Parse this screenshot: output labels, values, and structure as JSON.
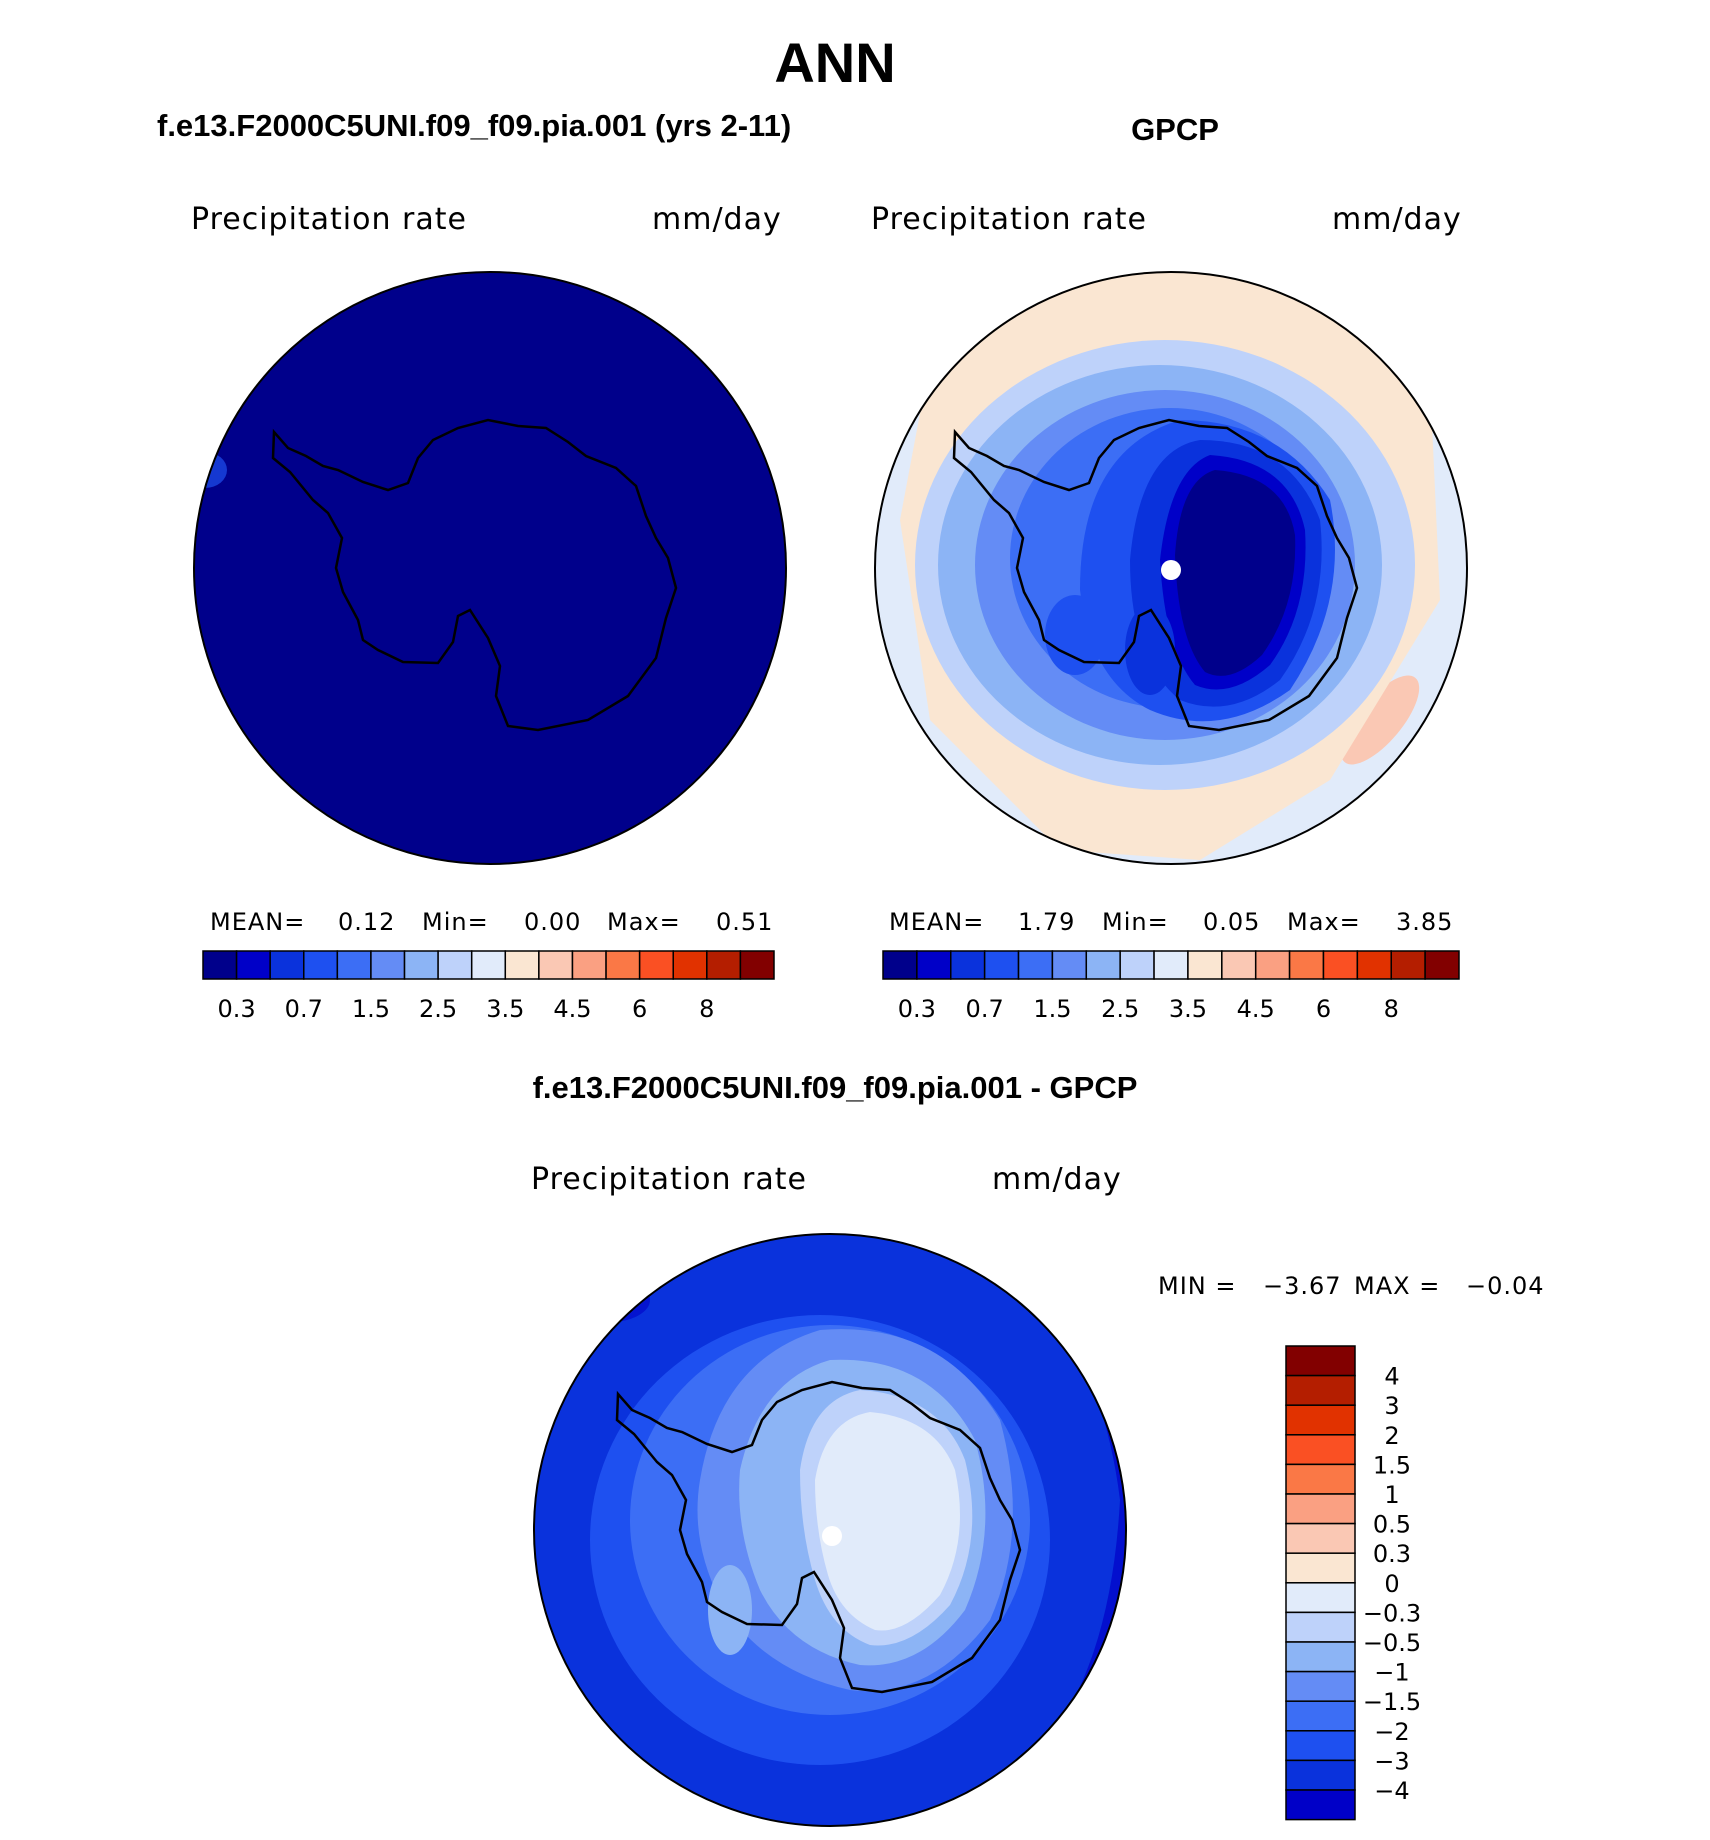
{
  "figure": {
    "title": "ANN",
    "left_panel_title": "f.e13.F2000C5UNI.f09_f09.pia.001 (yrs 2-11)",
    "right_panel_title": "GPCP",
    "diff_panel_title": "f.e13.F2000C5UNI.f09_f09.pia.001 - GPCP"
  },
  "panels": {
    "left": {
      "variable": "Precipitation rate",
      "units": "mm/day",
      "mean_label": "MEAN=",
      "mean": "0.12",
      "min_label": "Min=",
      "min": "0.00",
      "max_label": "Max=",
      "max": "0.51"
    },
    "right": {
      "variable": "Precipitation rate",
      "units": "mm/day",
      "mean_label": "MEAN=",
      "mean": "1.79",
      "min_label": "Min=",
      "min": "0.05",
      "max_label": "Max=",
      "max": "3.85"
    },
    "diff": {
      "variable": "Precipitation rate",
      "units": "mm/day",
      "min_label": "MIN =",
      "min": "−3.67",
      "max_label": "MAX =",
      "max": "−0.04"
    }
  },
  "colorbar_abs": {
    "colors": [
      "#00008b",
      "#0000c8",
      "#0a32dc",
      "#1e50f0",
      "#3c6ef5",
      "#648cf5",
      "#8cb4f5",
      "#bed2fa",
      "#e1ebfa",
      "#fae6d2",
      "#fac8b4",
      "#faa082",
      "#fa7846",
      "#fa5023",
      "#e13200",
      "#b41e00",
      "#820000"
    ],
    "tick_labels": [
      "0.3",
      "0.7",
      "1.5",
      "2.5",
      "3.5",
      "4.5",
      "6",
      "8"
    ]
  },
  "colorbar_diff": {
    "colors_top_to_bottom": [
      "#820000",
      "#b41e00",
      "#e13200",
      "#fa5023",
      "#fa7846",
      "#faa082",
      "#fac8b4",
      "#fae6d2",
      "#e1ebfa",
      "#bed2fa",
      "#8cb4f5",
      "#648cf5",
      "#3c6ef5",
      "#1e50f0",
      "#0a32dc",
      "#0000c8"
    ],
    "tick_labels": [
      "4",
      "3",
      "2",
      "1.5",
      "1",
      "0.5",
      "0.3",
      "0",
      "−0.3",
      "−0.5",
      "−1",
      "−1.5",
      "−2",
      "−3",
      "−4"
    ]
  },
  "colors": {
    "left_map_fill": "#00008b",
    "coastline": "#000000",
    "pole_marker": "#ffffff"
  }
}
